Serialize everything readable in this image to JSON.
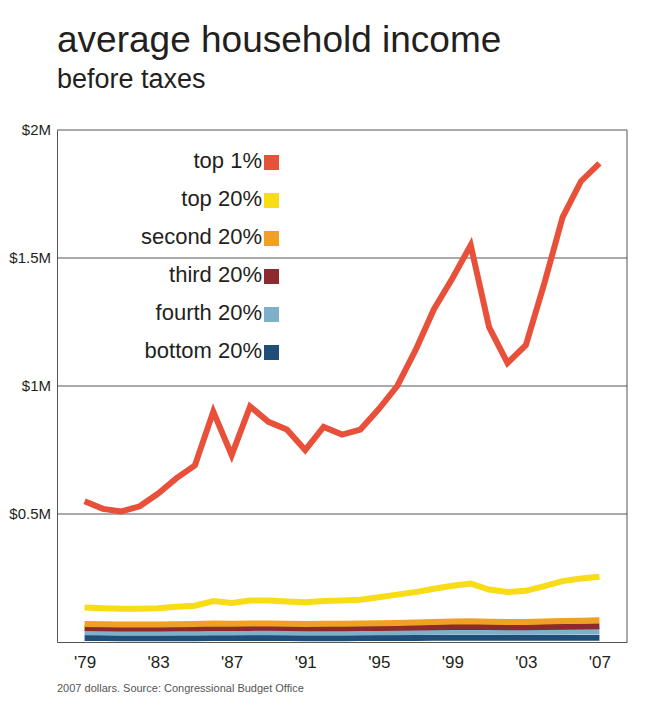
{
  "chart_data": {
    "type": "line",
    "title": "average household income",
    "subtitle": "before taxes",
    "source": "2007 dollars. Source: Congressional Budget Office",
    "x": [
      1979,
      1980,
      1981,
      1982,
      1983,
      1984,
      1985,
      1986,
      1987,
      1988,
      1989,
      1990,
      1991,
      1992,
      1993,
      1994,
      1995,
      1996,
      1997,
      1998,
      1999,
      2000,
      2001,
      2002,
      2003,
      2004,
      2005,
      2006,
      2007
    ],
    "xlim": [
      1977.5,
      2008.5
    ],
    "xticks": [
      {
        "value": 1979,
        "label": "'79"
      },
      {
        "value": 1983,
        "label": "'83"
      },
      {
        "value": 1987,
        "label": "'87"
      },
      {
        "value": 1991,
        "label": "'91"
      },
      {
        "value": 1995,
        "label": "'95"
      },
      {
        "value": 1999,
        "label": "'99"
      },
      {
        "value": 2003,
        "label": "'03"
      },
      {
        "value": 2007,
        "label": "'07"
      }
    ],
    "ylim": [
      0,
      2000000
    ],
    "yticks": [
      {
        "value": 500000,
        "label": "$0.5M"
      },
      {
        "value": 1000000,
        "label": "$1M"
      },
      {
        "value": 1500000,
        "label": "$1.5M"
      },
      {
        "value": 2000000,
        "label": "$2M"
      }
    ],
    "grid": true,
    "legend": "top-left",
    "series": [
      {
        "name": "top 1%",
        "color": "#e8503a",
        "values": [
          550000,
          520000,
          510000,
          530000,
          580000,
          640000,
          690000,
          900000,
          730000,
          920000,
          860000,
          830000,
          750000,
          840000,
          810000,
          830000,
          910000,
          1000000,
          1140000,
          1300000,
          1420000,
          1550000,
          1230000,
          1090000,
          1160000,
          1400000,
          1660000,
          1800000,
          1870000
        ]
      },
      {
        "name": "top 20%",
        "color": "#f7dc17",
        "values": [
          135000,
          132000,
          130000,
          130000,
          132000,
          138000,
          142000,
          160000,
          152000,
          162000,
          162000,
          158000,
          155000,
          160000,
          162000,
          165000,
          175000,
          185000,
          195000,
          208000,
          220000,
          228000,
          205000,
          195000,
          200000,
          218000,
          238000,
          248000,
          255000
        ]
      },
      {
        "name": "second 20%",
        "color": "#f0a024",
        "values": [
          70000,
          69000,
          68000,
          68000,
          68000,
          69000,
          70000,
          72000,
          71000,
          72000,
          72000,
          71000,
          70000,
          71000,
          71000,
          72000,
          73000,
          74000,
          76000,
          78000,
          80000,
          81000,
          79000,
          78000,
          78000,
          80000,
          82000,
          83000,
          85000
        ]
      },
      {
        "name": "third 20%",
        "color": "#8e2a2e",
        "values": [
          55000,
          54000,
          53000,
          53000,
          53000,
          54000,
          54000,
          55000,
          55000,
          55000,
          56000,
          55000,
          54000,
          54000,
          54000,
          55000,
          55000,
          56000,
          57000,
          58000,
          59000,
          60000,
          59000,
          58000,
          58000,
          59000,
          60000,
          61000,
          62000
        ]
      },
      {
        "name": "fourth 20%",
        "color": "#7fb0c9",
        "values": [
          38000,
          37000,
          36000,
          36000,
          36000,
          37000,
          37000,
          37000,
          37000,
          38000,
          38000,
          37000,
          37000,
          37000,
          37000,
          37000,
          38000,
          38000,
          39000,
          40000,
          41000,
          41000,
          41000,
          40000,
          40000,
          41000,
          41000,
          42000,
          42000
        ]
      },
      {
        "name": "bottom 20%",
        "color": "#1f4e79",
        "values": [
          16000,
          16000,
          15000,
          15000,
          15000,
          15000,
          15000,
          16000,
          16000,
          16000,
          16000,
          16000,
          15000,
          15000,
          15000,
          16000,
          16000,
          16000,
          16000,
          17000,
          17000,
          17000,
          17000,
          17000,
          17000,
          17000,
          17000,
          17000,
          17000
        ]
      }
    ]
  }
}
